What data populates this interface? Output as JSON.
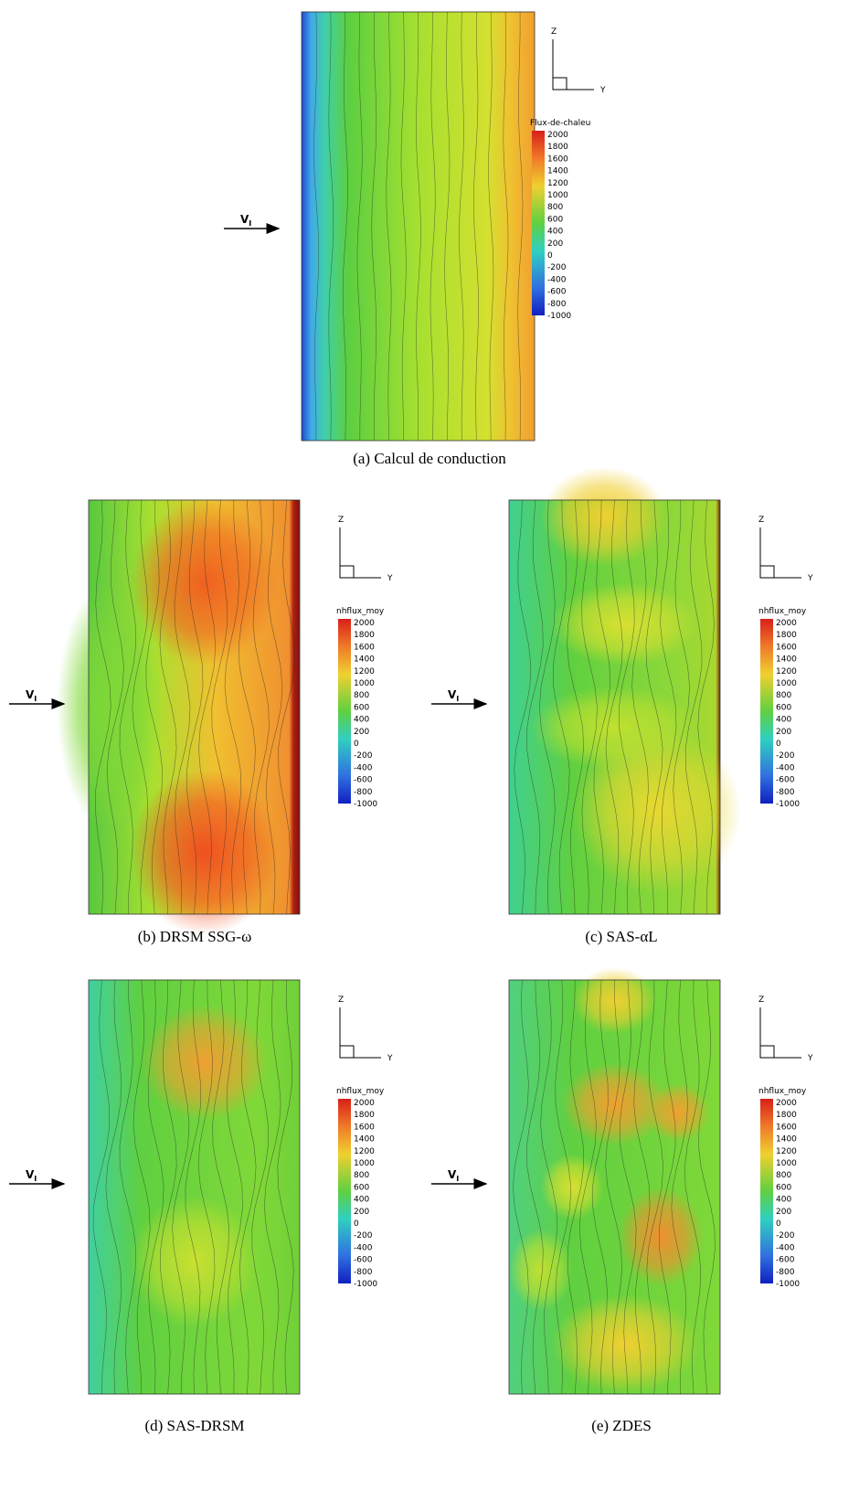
{
  "panels": [
    {
      "caption": "(a) Calcul de conduction",
      "inflow_label": {
        "main": "V",
        "sub": "I"
      },
      "axes": {
        "vertical": "Z",
        "horizontal": "Y"
      },
      "colorbar": {
        "title": "Flux-de-chaleu",
        "ticks": [
          2000,
          1800,
          1600,
          1400,
          1200,
          1000,
          800,
          600,
          400,
          200,
          0,
          -200,
          -400,
          -600,
          -800,
          -1000
        ]
      }
    },
    {
      "caption": "(b) DRSM SSG-ω",
      "inflow_label": {
        "main": "V",
        "sub": "I"
      },
      "axes": {
        "vertical": "Z",
        "horizontal": "Y"
      },
      "colorbar": {
        "title": "nhflux_moy",
        "ticks": [
          2000,
          1800,
          1600,
          1400,
          1200,
          1000,
          800,
          600,
          400,
          200,
          0,
          -200,
          -400,
          -600,
          -800,
          -1000
        ]
      }
    },
    {
      "caption": "(c) SAS-αL",
      "inflow_label": {
        "main": "V",
        "sub": "I"
      },
      "axes": {
        "vertical": "Z",
        "horizontal": "Y"
      },
      "colorbar": {
        "title": "nhflux_moy",
        "ticks": [
          2000,
          1800,
          1600,
          1400,
          1200,
          1000,
          800,
          600,
          400,
          200,
          0,
          -200,
          -400,
          -600,
          -800,
          -1000
        ]
      }
    },
    {
      "caption": "(d) SAS-DRSM",
      "inflow_label": {
        "main": "V",
        "sub": "I"
      },
      "axes": {
        "vertical": "Z",
        "horizontal": "Y"
      },
      "colorbar": {
        "title": "nhflux_moy",
        "ticks": [
          2000,
          1800,
          1600,
          1400,
          1200,
          1000,
          800,
          600,
          400,
          200,
          0,
          -200,
          -400,
          -600,
          -800,
          -1000
        ]
      }
    },
    {
      "caption": "(e) ZDES",
      "inflow_label": {
        "main": "V",
        "sub": "I"
      },
      "axes": {
        "vertical": "Z",
        "horizontal": "Y"
      },
      "colorbar": {
        "title": "nhflux_moy",
        "ticks": [
          2000,
          1800,
          1600,
          1400,
          1200,
          1000,
          800,
          600,
          400,
          200,
          0,
          -200,
          -400,
          -600,
          -800,
          -1000
        ]
      }
    }
  ]
}
